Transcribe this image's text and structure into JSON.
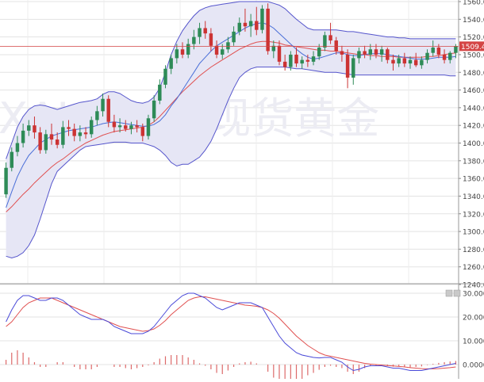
{
  "chart_data": [
    {
      "type": "candlestick",
      "title": "",
      "watermark": "XAU/USD 现货黄金",
      "y_range": [
        1240,
        1560
      ],
      "y_ticks": [
        "1560.00",
        "1540.00",
        "1520.00",
        "1500.00",
        "1480.00",
        "1460.00",
        "1440.00",
        "1420.00",
        "1400.00",
        "1380.00",
        "1360.00",
        "1340.00",
        "1320.00",
        "1300.00",
        "1280.00",
        "1260.00",
        "1240.00"
      ],
      "current_price_label": "1509.48",
      "current_price": 1509.48,
      "grid": true,
      "colors": {
        "up": "#2e8b57",
        "down": "#cc3333",
        "band": "#5555cc",
        "band_fill": "#e6e6f5",
        "middle": "#4a6fd8",
        "ma": "#e05050",
        "price_line": "#d44444"
      },
      "candles": [
        [
          1342,
          1378,
          1338,
          1372
        ],
        [
          1372,
          1395,
          1368,
          1390
        ],
        [
          1390,
          1408,
          1385,
          1400
        ],
        [
          1400,
          1422,
          1395,
          1414
        ],
        [
          1414,
          1426,
          1408,
          1420
        ],
        [
          1420,
          1430,
          1405,
          1412
        ],
        [
          1412,
          1418,
          1388,
          1392
        ],
        [
          1392,
          1415,
          1388,
          1410
        ],
        [
          1410,
          1422,
          1398,
          1404
        ],
        [
          1404,
          1412,
          1394,
          1398
        ],
        [
          1398,
          1425,
          1394,
          1418
        ],
        [
          1418,
          1426,
          1408,
          1416
        ],
        [
          1416,
          1422,
          1402,
          1408
        ],
        [
          1408,
          1420,
          1402,
          1412
        ],
        [
          1412,
          1418,
          1405,
          1410
        ],
        [
          1410,
          1430,
          1406,
          1426
        ],
        [
          1426,
          1442,
          1420,
          1436
        ],
        [
          1436,
          1456,
          1430,
          1450
        ],
        [
          1450,
          1454,
          1418,
          1424
        ],
        [
          1424,
          1432,
          1412,
          1418
        ],
        [
          1418,
          1428,
          1412,
          1420
        ],
        [
          1420,
          1426,
          1413,
          1416
        ],
        [
          1416,
          1424,
          1410,
          1420
        ],
        [
          1420,
          1426,
          1412,
          1418
        ],
        [
          1418,
          1422,
          1402,
          1408
        ],
        [
          1408,
          1432,
          1404,
          1428
        ],
        [
          1428,
          1454,
          1424,
          1448
        ],
        [
          1448,
          1472,
          1444,
          1466
        ],
        [
          1466,
          1488,
          1462,
          1484
        ],
        [
          1484,
          1500,
          1478,
          1496
        ],
        [
          1496,
          1512,
          1490,
          1506
        ],
        [
          1506,
          1514,
          1496,
          1500
        ],
        [
          1500,
          1518,
          1496,
          1512
        ],
        [
          1512,
          1528,
          1506,
          1520
        ],
        [
          1520,
          1536,
          1512,
          1530
        ],
        [
          1530,
          1538,
          1518,
          1524
        ],
        [
          1524,
          1530,
          1504,
          1510
        ],
        [
          1510,
          1516,
          1496,
          1500
        ],
        [
          1500,
          1512,
          1495,
          1506
        ],
        [
          1506,
          1520,
          1502,
          1514
        ],
        [
          1514,
          1532,
          1510,
          1526
        ],
        [
          1526,
          1542,
          1522,
          1536
        ],
        [
          1536,
          1552,
          1526,
          1532
        ],
        [
          1532,
          1546,
          1520,
          1538
        ],
        [
          1538,
          1554,
          1522,
          1528
        ],
        [
          1528,
          1556,
          1524,
          1552
        ],
        [
          1552,
          1558,
          1500,
          1504
        ],
        [
          1504,
          1516,
          1496,
          1510
        ],
        [
          1510,
          1516,
          1488,
          1492
        ],
        [
          1492,
          1500,
          1482,
          1486
        ],
        [
          1486,
          1504,
          1482,
          1500
        ],
        [
          1500,
          1508,
          1486,
          1490
        ],
        [
          1490,
          1498,
          1484,
          1494
        ],
        [
          1494,
          1500,
          1486,
          1492
        ],
        [
          1492,
          1504,
          1488,
          1498
        ],
        [
          1498,
          1512,
          1494,
          1508
        ],
        [
          1508,
          1526,
          1504,
          1522
        ],
        [
          1522,
          1536,
          1512,
          1516
        ],
        [
          1516,
          1520,
          1500,
          1504
        ],
        [
          1504,
          1510,
          1492,
          1500
        ],
        [
          1500,
          1506,
          1462,
          1474
        ],
        [
          1474,
          1500,
          1466,
          1496
        ],
        [
          1496,
          1508,
          1490,
          1504
        ],
        [
          1504,
          1510,
          1496,
          1500
        ],
        [
          1500,
          1512,
          1494,
          1506
        ],
        [
          1506,
          1512,
          1496,
          1500
        ],
        [
          1500,
          1510,
          1492,
          1506
        ],
        [
          1506,
          1508,
          1490,
          1494
        ],
        [
          1494,
          1500,
          1482,
          1490
        ],
        [
          1490,
          1500,
          1486,
          1496
        ],
        [
          1496,
          1502,
          1486,
          1490
        ],
        [
          1490,
          1498,
          1484,
          1494
        ],
        [
          1494,
          1502,
          1486,
          1488
        ],
        [
          1488,
          1498,
          1484,
          1494
        ],
        [
          1494,
          1506,
          1490,
          1502
        ],
        [
          1502,
          1516,
          1498,
          1508
        ],
        [
          1508,
          1512,
          1496,
          1500
        ],
        [
          1500,
          1506,
          1490,
          1494
        ],
        [
          1494,
          1504,
          1490,
          1502
        ],
        [
          1502,
          1512,
          1496,
          1509.48
        ]
      ],
      "bollinger_upper": [
        1382,
        1400,
        1418,
        1430,
        1438,
        1442,
        1443,
        1442,
        1440,
        1438,
        1440,
        1442,
        1444,
        1446,
        1447,
        1448,
        1450,
        1455,
        1458,
        1458,
        1456,
        1452,
        1448,
        1446,
        1445,
        1447,
        1452,
        1462,
        1480,
        1500,
        1515,
        1527,
        1536,
        1544,
        1550,
        1553,
        1555,
        1556,
        1557,
        1558,
        1559,
        1560,
        1560,
        1560,
        1560,
        1560,
        1560,
        1558,
        1556,
        1552,
        1546,
        1540,
        1535,
        1530,
        1528,
        1528,
        1528,
        1528,
        1528,
        1527,
        1526,
        1526,
        1525,
        1524,
        1523,
        1522,
        1521,
        1520,
        1520,
        1519,
        1519,
        1518,
        1518,
        1518,
        1518,
        1518,
        1518,
        1518,
        1518,
        1518
      ],
      "bollinger_lower": [
        1272,
        1270,
        1272,
        1276,
        1284,
        1296,
        1314,
        1334,
        1354,
        1368,
        1374,
        1380,
        1386,
        1392,
        1396,
        1397,
        1398,
        1399,
        1400,
        1401,
        1401,
        1401,
        1400,
        1400,
        1400,
        1398,
        1396,
        1392,
        1386,
        1378,
        1374,
        1376,
        1376,
        1380,
        1384,
        1392,
        1402,
        1416,
        1432,
        1448,
        1462,
        1474,
        1480,
        1484,
        1486,
        1486,
        1486,
        1486,
        1486,
        1486,
        1485,
        1484,
        1484,
        1483,
        1482,
        1481,
        1480,
        1480,
        1480,
        1479,
        1478,
        1477,
        1477,
        1477,
        1477,
        1477,
        1477,
        1477,
        1477,
        1477,
        1477,
        1477,
        1477,
        1477,
        1477,
        1477,
        1477,
        1477,
        1476,
        1476
      ],
      "bollinger_middle": [
        1327,
        1345,
        1362,
        1375,
        1386,
        1393,
        1400,
        1404,
        1408,
        1410,
        1412,
        1414,
        1415,
        1416,
        1417,
        1418,
        1420,
        1422,
        1423,
        1424,
        1423,
        1422,
        1421,
        1420,
        1419,
        1419,
        1421,
        1425,
        1432,
        1442,
        1450,
        1460,
        1470,
        1480,
        1490,
        1497,
        1504,
        1510,
        1514,
        1518,
        1522,
        1526,
        1530,
        1533,
        1535,
        1536,
        1534,
        1530,
        1524,
        1518,
        1512,
        1506,
        1501,
        1497,
        1495,
        1496,
        1498,
        1500,
        1502,
        1502,
        1500,
        1499,
        1499,
        1500,
        1501,
        1501,
        1501,
        1500,
        1499,
        1498,
        1497,
        1496,
        1495,
        1495,
        1495,
        1496,
        1497,
        1497,
        1497,
        1498
      ],
      "ma_line": [
        1322,
        1328,
        1335,
        1342,
        1348,
        1355,
        1361,
        1367,
        1373,
        1378,
        1382,
        1387,
        1392,
        1396,
        1400,
        1403,
        1406,
        1409,
        1411,
        1413,
        1414,
        1415,
        1416,
        1417,
        1418,
        1420,
        1424,
        1430,
        1437,
        1444,
        1451,
        1458,
        1464,
        1470,
        1476,
        1481,
        1486,
        1490,
        1494,
        1498,
        1502,
        1506,
        1509,
        1512,
        1514,
        1515,
        1515,
        1514,
        1513,
        1511,
        1510,
        1509,
        1508,
        1507,
        1506,
        1505,
        1505,
        1504,
        1504,
        1503,
        1502,
        1501,
        1500,
        1500,
        1499,
        1499,
        1498,
        1498,
        1498,
        1497,
        1497,
        1497,
        1497,
        1497,
        1498,
        1498,
        1499,
        1500,
        1501,
        1502
      ]
    },
    {
      "type": "macd",
      "title": "",
      "y_range": [
        -6,
        32
      ],
      "y_ticks": [
        "30.0000",
        "20.0000",
        "10.0000",
        "0.0000"
      ],
      "panel_icons": [
        "restore-icon",
        "close-icon"
      ],
      "colors": {
        "fast": "#4a4ad8",
        "slow": "#e05050",
        "hist": "#dd6a6a"
      },
      "macd": [
        18,
        23,
        27,
        29,
        29,
        28,
        27,
        27,
        28,
        28,
        27,
        25,
        23,
        21,
        20,
        19,
        19,
        19,
        18,
        16,
        15,
        14,
        13,
        13,
        13,
        14,
        16,
        19,
        22,
        25,
        27,
        29,
        30,
        30,
        29,
        28,
        26,
        24,
        23,
        24,
        25,
        26,
        26,
        26,
        25,
        24,
        20,
        16,
        12,
        9,
        7,
        5,
        4,
        3.5,
        3,
        2.8,
        3,
        3,
        2,
        1,
        -1,
        -2.5,
        -2,
        -1,
        -0.5,
        -0.5,
        -0.5,
        -1,
        -1.5,
        -1.5,
        -2,
        -2.5,
        -2.5,
        -2.5,
        -2,
        -1.5,
        -1,
        -0.5,
        0,
        0.5
      ],
      "signal": [
        16,
        18,
        21,
        24,
        26,
        27,
        28,
        28,
        28,
        27,
        26,
        25,
        24,
        23,
        22,
        21,
        20,
        19,
        18,
        17,
        16,
        15.5,
        15,
        14.5,
        14,
        14.3,
        15,
        16.5,
        18.5,
        21,
        23,
        25,
        27,
        28,
        28.5,
        28.5,
        28,
        27.5,
        27,
        26.5,
        26,
        25.5,
        25,
        24.8,
        24.5,
        24,
        23,
        21.5,
        19.5,
        17,
        14.5,
        12,
        10,
        8,
        6.5,
        5,
        4,
        3.5,
        3,
        2.5,
        2,
        1.5,
        1,
        0.5,
        0.2,
        0,
        -0.2,
        -0.4,
        -0.6,
        -0.8,
        -1,
        -1.3,
        -1.5,
        -1.7,
        -1.8,
        -1.8,
        -1.7,
        -1.5,
        -1.3,
        -1
      ],
      "histogram": [
        2,
        5,
        6,
        5,
        3,
        1,
        -1,
        -1,
        0,
        1,
        1,
        0,
        -1,
        -2,
        -2,
        -2,
        -1,
        0,
        0,
        -1,
        -1,
        -1.5,
        -2,
        -1.5,
        -1,
        -0.3,
        1,
        2.5,
        3.5,
        4,
        4,
        4,
        3,
        2,
        0.5,
        -0.5,
        -2,
        -3.5,
        -4,
        -2.5,
        -1,
        0.5,
        1,
        1.2,
        0.5,
        0,
        -3,
        -5.5,
        -7.5,
        -8,
        -7.5,
        -7,
        -6,
        -4.5,
        -3.5,
        -2.2,
        -1,
        -0.5,
        -1,
        -1.5,
        -3,
        -4,
        -3,
        -1.5,
        -0.7,
        -0.5,
        -0.3,
        -0.6,
        -0.9,
        -0.7,
        -1,
        -1.2,
        -1,
        -0.8,
        -0.2,
        0.3,
        0.7,
        1,
        1.3,
        1.5
      ]
    }
  ]
}
